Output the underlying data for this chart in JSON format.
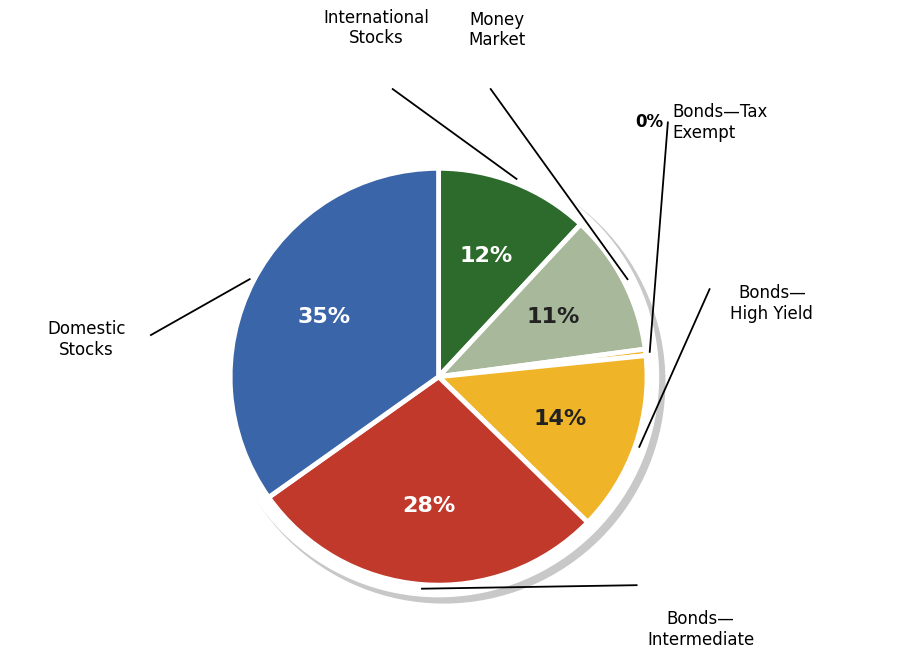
{
  "slices_cw_from_top": [
    {
      "label": "International\nStocks",
      "pct": 12,
      "color": "#2D6B2D",
      "text_color": "white"
    },
    {
      "label": "Money\nMarket",
      "pct": 11,
      "color": "#A8B89A",
      "text_color": "#222222"
    },
    {
      "label": "Bonds—Tax\nExempt",
      "pct": 0,
      "color": "#F0B428",
      "text_color": "#222222"
    },
    {
      "label": "Bonds—\nHigh Yield",
      "pct": 14,
      "color": "#F0B428",
      "text_color": "#222222"
    },
    {
      "label": "Bonds—\nIntermediate",
      "pct": 28,
      "color": "#C0392B",
      "text_color": "white"
    },
    {
      "label": "Domestic\nStocks",
      "pct": 35,
      "color": "#3A65A8",
      "text_color": "white"
    }
  ],
  "background_color": "#ffffff",
  "figsize": [
    8.98,
    6.58
  ],
  "dpi": 100,
  "label_fontsize": 12,
  "pct_fontsize": 16
}
